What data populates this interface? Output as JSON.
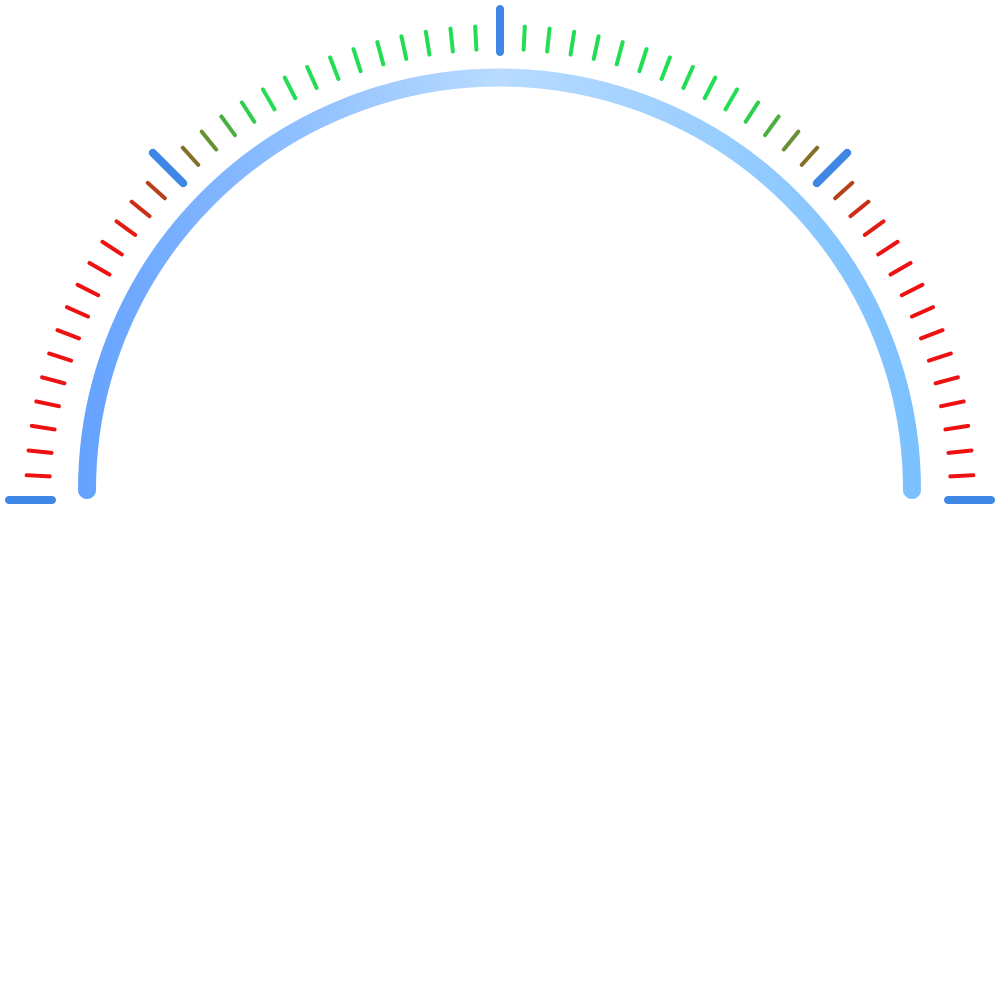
{
  "gauge": {
    "type": "semicircle-dial",
    "major_tick_count": 5,
    "minor_ticks_per_segment": 14,
    "colors": {
      "major_tick": "#3f87e4",
      "arc_start": "#66a3ff",
      "arc_middle": "#b8dbff",
      "arc_end": "#7cc1ff",
      "outer_zone": "#ee1111",
      "transition_zone": "#a0521c",
      "middle_zone": "#22dd55"
    }
  }
}
